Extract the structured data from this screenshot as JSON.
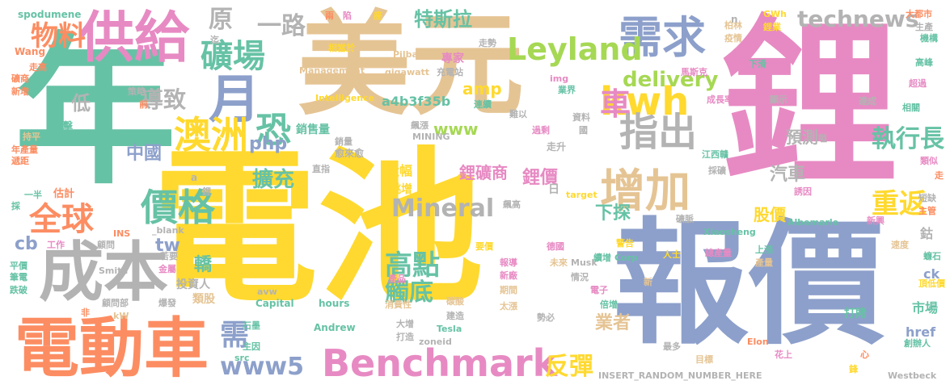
{
  "palette": {
    "green": "#66c2a5",
    "orange": "#fc8d62",
    "blue": "#8da0cb",
    "pink": "#e78ac3",
    "lime": "#a6d854",
    "yellow": "#ffd92f",
    "tan": "#e5c494",
    "gray": "#b3b3b3"
  },
  "words": [
    {
      "text": "電池",
      "color": "yellow"
    },
    {
      "text": "美元",
      "color": "tan"
    },
    {
      "text": "鋰",
      "color": "pink"
    },
    {
      "text": "年",
      "color": "green"
    },
    {
      "text": "報價",
      "color": "blue"
    },
    {
      "text": "電動車",
      "color": "orange"
    },
    {
      "text": "成本",
      "color": "gray"
    },
    {
      "text": "供給",
      "color": "pink"
    },
    {
      "text": "需求",
      "color": "blue"
    },
    {
      "text": "Benchmark",
      "color": "pink"
    },
    {
      "text": "增加",
      "color": "tan"
    },
    {
      "text": "kwh",
      "color": "yellow"
    },
    {
      "text": "Leyland",
      "color": "lime"
    },
    {
      "text": "指出",
      "color": "gray"
    },
    {
      "text": "月",
      "color": "blue"
    },
    {
      "text": "礦場",
      "color": "green"
    },
    {
      "text": "澳洲",
      "color": "yellow"
    },
    {
      "text": "價格",
      "color": "green"
    },
    {
      "text": "全球",
      "color": "orange"
    },
    {
      "text": "恐",
      "color": "green"
    },
    {
      "text": "technews",
      "color": "gray"
    },
    {
      "text": "delivery",
      "color": "lime"
    },
    {
      "text": "重返",
      "color": "yellow"
    },
    {
      "text": "物料",
      "color": "orange"
    },
    {
      "text": "原",
      "color": "gray"
    },
    {
      "text": "一路",
      "color": "gray"
    },
    {
      "text": "特斯拉",
      "color": "green"
    },
    {
      "text": "車",
      "color": "pink"
    },
    {
      "text": "執行長",
      "color": "green"
    },
    {
      "text": "Mineral",
      "color": "gray"
    },
    {
      "text": "高點",
      "color": "green"
    },
    {
      "text": "觸底",
      "color": "green"
    },
    {
      "text": "www5",
      "color": "blue"
    },
    {
      "text": "反彈",
      "color": "yellow"
    },
    {
      "text": "需",
      "color": "blue"
    },
    {
      "text": "導致",
      "color": "gray"
    },
    {
      "text": "擴充",
      "color": "green"
    },
    {
      "text": "php",
      "color": "blue"
    },
    {
      "text": "www",
      "color": "lime"
    },
    {
      "text": "amp",
      "color": "yellow"
    },
    {
      "text": "中國",
      "color": "blue"
    },
    {
      "text": "低",
      "color": "gray"
    },
    {
      "text": "鋰價",
      "color": "pink"
    },
    {
      "text": "鋰礦商",
      "color": "pink"
    },
    {
      "text": "預測",
      "color": "gray"
    },
    {
      "text": "汽車",
      "color": "gray"
    },
    {
      "text": "下探",
      "color": "green"
    },
    {
      "text": "股價",
      "color": "yellow"
    },
    {
      "text": "業者",
      "color": "tan"
    },
    {
      "text": "轎",
      "color": "green"
    },
    {
      "text": "tw",
      "color": "blue"
    },
    {
      "text": "cb",
      "color": "blue"
    },
    {
      "text": "銷售量",
      "color": "green"
    },
    {
      "text": "a4b3f35b",
      "color": "green"
    },
    {
      "text": "專家",
      "color": "pink"
    },
    {
      "text": "大幅",
      "color": "yellow"
    },
    {
      "text": "跳增",
      "color": "yellow"
    },
    {
      "text": "投資人",
      "color": "gray"
    },
    {
      "text": "類股",
      "color": "tan"
    },
    {
      "text": "打賭",
      "color": "green"
    },
    {
      "text": "市場",
      "color": "green"
    },
    {
      "text": "鈷",
      "color": "gray"
    },
    {
      "text": "ck",
      "color": "blue"
    },
    {
      "text": "href",
      "color": "blue"
    },
    {
      "text": "spodumene",
      "color": "green"
    },
    {
      "text": "Wang",
      "color": "orange"
    },
    {
      "text": "走高",
      "color": "orange"
    },
    {
      "text": "礦商",
      "color": "orange"
    },
    {
      "text": "新增",
      "color": "orange"
    },
    {
      "text": "策略",
      "color": "gray"
    },
    {
      "text": "前",
      "color": "orange"
    },
    {
      "text": "衝擊",
      "color": "green"
    },
    {
      "text": "損益",
      "color": "green"
    },
    {
      "text": "持平",
      "color": "tan"
    },
    {
      "text": "年產量",
      "color": "orange"
    },
    {
      "text": "遞距",
      "color": "orange"
    },
    {
      "text": "一半",
      "color": "green"
    },
    {
      "text": "估計",
      "color": "orange"
    },
    {
      "text": "採",
      "color": "green"
    },
    {
      "text": "工作",
      "color": "pink"
    },
    {
      "text": "顧問",
      "color": "gray"
    },
    {
      "text": "INS",
      "color": "orange"
    },
    {
      "text": "平價",
      "color": "green"
    },
    {
      "text": "筆電",
      "color": "green"
    },
    {
      "text": "跌破",
      "color": "green"
    },
    {
      "text": "顧問部",
      "color": "gray"
    },
    {
      "text": "爆發",
      "color": "gray"
    },
    {
      "text": "金屬",
      "color": "pink"
    },
    {
      "text": "Smith",
      "color": "gray"
    },
    {
      "text": "若要",
      "color": "gray"
    },
    {
      "text": "_blank",
      "color": "gray"
    },
    {
      "text": "kW",
      "color": "tan"
    },
    {
      "text": "非",
      "color": "orange"
    },
    {
      "text": "石墨",
      "color": "green"
    },
    {
      "text": "主因",
      "color": "green"
    },
    {
      "text": "src",
      "color": "green"
    },
    {
      "text": "avw",
      "color": "gray"
    },
    {
      "text": "Capital",
      "color": "green"
    },
    {
      "text": "hours",
      "color": "green"
    },
    {
      "text": "Andrew",
      "color": "green"
    },
    {
      "text": "消費性",
      "color": "tan"
    },
    {
      "text": "大增",
      "color": "gray"
    },
    {
      "text": "打造",
      "color": "gray"
    },
    {
      "text": "zoneid",
      "color": "gray"
    },
    {
      "text": "Tesla",
      "color": "green"
    },
    {
      "text": "建造",
      "color": "gray"
    },
    {
      "text": "碳酸",
      "color": "tan"
    },
    {
      "text": "產品",
      "color": "pink"
    },
    {
      "text": "要價",
      "color": "yellow"
    },
    {
      "text": "報導",
      "color": "pink"
    },
    {
      "text": "新廠",
      "color": "pink"
    },
    {
      "text": "期間",
      "color": "tan"
    },
    {
      "text": "太漲",
      "color": "tan"
    },
    {
      "text": "勢必",
      "color": "gray"
    },
    {
      "text": "德國",
      "color": "pink"
    },
    {
      "text": "未來",
      "color": "tan"
    },
    {
      "text": "情況",
      "color": "gray"
    },
    {
      "text": "Musk",
      "color": "gray"
    },
    {
      "text": "電子",
      "color": "pink"
    },
    {
      "text": "倍增",
      "color": "green"
    },
    {
      "text": "Corp",
      "color": "green"
    },
    {
      "text": "續增",
      "color": "green"
    },
    {
      "text": "警告",
      "color": "yellow"
    },
    {
      "text": "新",
      "color": "tan"
    },
    {
      "text": "人士",
      "color": "yellow"
    },
    {
      "text": "總產量",
      "color": "pink"
    },
    {
      "text": "Elon",
      "color": "orange"
    },
    {
      "text": "最多",
      "color": "gray"
    },
    {
      "text": "目標",
      "color": "tan"
    },
    {
      "text": "花上",
      "color": "pink"
    },
    {
      "text": "INSERT_RANDOM_NUMBER_HERE",
      "color": "gray"
    },
    {
      "text": "Westbeck",
      "color": "gray"
    },
    {
      "text": "心",
      "color": "orange"
    },
    {
      "text": "鋒",
      "color": "yellow"
    },
    {
      "text": "創辦人",
      "color": "green"
    },
    {
      "text": "上漲",
      "color": "green"
    },
    {
      "text": "產量",
      "color": "tan"
    },
    {
      "text": "新興",
      "color": "pink"
    },
    {
      "text": "速度",
      "color": "tan"
    },
    {
      "text": "蠊石",
      "color": "green"
    },
    {
      "text": "頂低價",
      "color": "yellow"
    },
    {
      "text": "主管",
      "color": "orange"
    },
    {
      "text": "短缺",
      "color": "gray"
    },
    {
      "text": "走",
      "color": "orange"
    },
    {
      "text": "類似",
      "color": "pink"
    },
    {
      "text": "Albemarle",
      "color": "green"
    },
    {
      "text": "Xiaosheng",
      "color": "green"
    },
    {
      "text": "礦脈",
      "color": "gray"
    },
    {
      "text": "誘因",
      "color": "pink"
    },
    {
      "text": "江西贛",
      "color": "green"
    },
    {
      "text": "採礦",
      "color": "gray"
    },
    {
      "text": "嗌",
      "color": "gray"
    },
    {
      "text": "相關",
      "color": "green"
    },
    {
      "text": "達成",
      "color": "gray"
    },
    {
      "text": "超過",
      "color": "pink"
    },
    {
      "text": "高峰",
      "color": "green"
    },
    {
      "text": "機構",
      "color": "green"
    },
    {
      "text": "生產",
      "color": "gray"
    },
    {
      "text": "大都市",
      "color": "orange"
    },
    {
      "text": "GWh",
      "color": "yellow"
    },
    {
      "text": "鋰業",
      "color": "yellow"
    },
    {
      "text": "柏林",
      "color": "tan"
    },
    {
      "text": "疫情",
      "color": "tan"
    },
    {
      "text": "下滑",
      "color": "green"
    },
    {
      "text": "馬斯克",
      "color": "pink"
    },
    {
      "text": "成長率",
      "color": "pink"
    },
    {
      "text": "顯示",
      "color": "gray"
    },
    {
      "text": "n",
      "color": "gray"
    },
    {
      "text": "資料",
      "color": "gray"
    },
    {
      "text": "國",
      "color": "gray"
    },
    {
      "text": "業界",
      "color": "green"
    },
    {
      "text": "img",
      "color": "pink"
    },
    {
      "text": "難以",
      "color": "gray"
    },
    {
      "text": "過剩",
      "color": "pink"
    },
    {
      "text": "走升",
      "color": "gray"
    },
    {
      "text": "日",
      "color": "gray"
    },
    {
      "text": "愈來愈",
      "color": "gray"
    },
    {
      "text": "直指",
      "color": "gray"
    },
    {
      "text": "銷量",
      "color": "gray"
    },
    {
      "text": "MINING",
      "color": "gray"
    },
    {
      "text": "飆漲",
      "color": "gray"
    },
    {
      "text": "連續",
      "color": "green"
    },
    {
      "text": "Intelligence",
      "color": "yellow"
    },
    {
      "text": "Management",
      "color": "tan"
    },
    {
      "text": "gigawatt",
      "color": "tan"
    },
    {
      "text": "充電站",
      "color": "gray"
    },
    {
      "text": "Pilbara",
      "color": "tan"
    },
    {
      "text": "相當於",
      "color": "yellow"
    },
    {
      "text": "走勢",
      "color": "gray"
    },
    {
      "text": "座",
      "color": "yellow"
    },
    {
      "text": "陷",
      "color": "pink"
    },
    {
      "text": "兩",
      "color": "orange"
    },
    {
      "text": "迄",
      "color": "gray"
    },
    {
      "text": "a",
      "color": "gray"
    },
    {
      "text": "鋰",
      "color": "gray"
    },
    {
      "text": "target",
      "color": "yellow"
    },
    {
      "text": "飆高",
      "color": "gray"
    }
  ]
}
